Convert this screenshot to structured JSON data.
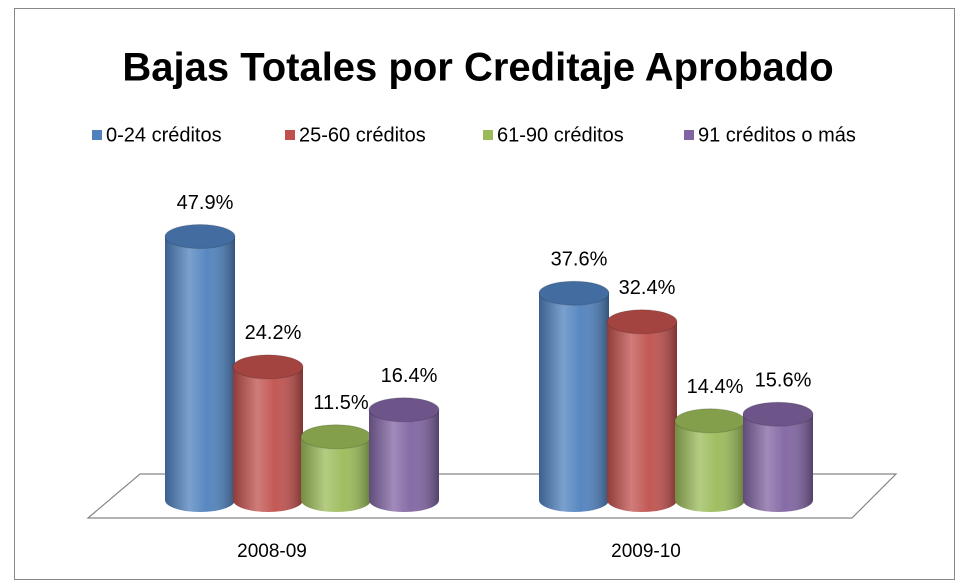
{
  "chart_data": {
    "type": "bar3d-cylinder",
    "title": "Bajas Totales por Creditaje Aprobado",
    "categories": [
      "2008-09",
      "2009-10"
    ],
    "series": [
      {
        "name": "0-24 créditos",
        "color": "#4f81bd",
        "values": [
          47.9,
          37.6
        ],
        "value_labels": [
          "47.9%",
          "37.6%"
        ]
      },
      {
        "name": "25-60 créditos",
        "color": "#c0504d",
        "values": [
          24.2,
          32.4
        ],
        "value_labels": [
          "24.2%",
          "32.4%"
        ]
      },
      {
        "name": "61-90 créditos",
        "color": "#9bbb59",
        "values": [
          11.5,
          14.4
        ],
        "value_labels": [
          "11.5%",
          "14.4%"
        ]
      },
      {
        "name": "91 créditos o más",
        "color": "#8064a2",
        "values": [
          16.4,
          15.6
        ],
        "value_labels": [
          "16.4%",
          "15.6%"
        ]
      }
    ],
    "legend": "top"
  }
}
